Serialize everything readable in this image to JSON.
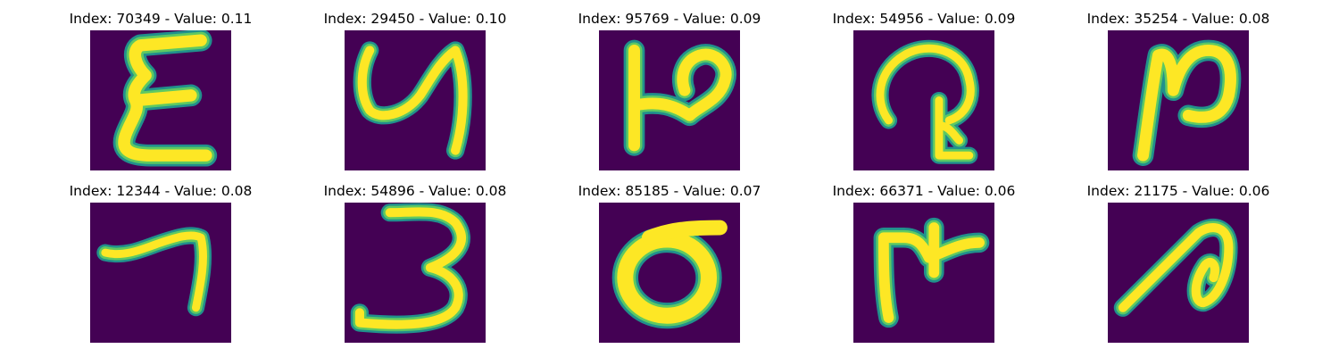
{
  "colors": {
    "background": "#440154",
    "stroke_edge": "#21908c",
    "stroke_mid": "#5ec962",
    "stroke_core": "#fde725"
  },
  "panels": [
    {
      "title": "Index: 70349 - Value: 0.11",
      "glyph": "sigma-like-handwritten-symbol"
    },
    {
      "title": "Index: 29450 - Value: 0.10",
      "glyph": "y-like-handwritten-symbol"
    },
    {
      "title": "Index: 95769 - Value: 0.09",
      "glyph": "p-like-handwritten-symbol"
    },
    {
      "title": "Index: 54956 - Value: 0.09",
      "glyph": "looped-handwritten-symbol"
    },
    {
      "title": "Index: 35254 - Value: 0.08",
      "glyph": "n-like-handwritten-symbol"
    },
    {
      "title": "Index: 12344 - Value: 0.08",
      "glyph": "seven-like-handwritten-symbol"
    },
    {
      "title": "Index: 54896 - Value: 0.08",
      "glyph": "three-like-handwritten-symbol"
    },
    {
      "title": "Index: 85185 - Value: 0.07",
      "glyph": "oval-handwritten-symbol"
    },
    {
      "title": "Index: 66371 - Value: 0.06",
      "glyph": "cross-topped-handwritten-symbol"
    },
    {
      "title": "Index: 21175 - Value: 0.06",
      "glyph": "curled-stroke-handwritten-symbol"
    }
  ]
}
